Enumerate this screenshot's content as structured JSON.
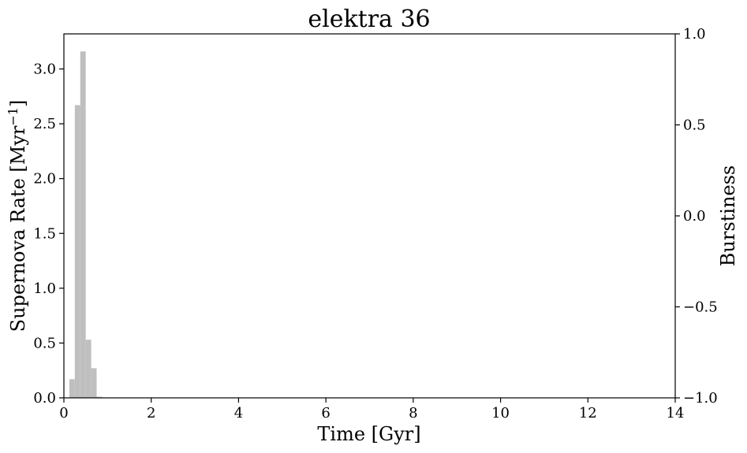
{
  "chart_data": {
    "type": "bar",
    "title": "elektra 36",
    "xlabel": "Time [Gyr]",
    "ylabel": "Supernova Rate [Myr",
    "ylabel_sup": "−1",
    "ylabel_close": "]",
    "y2label": "Burstiness",
    "xlim": [
      0,
      14
    ],
    "ylim": [
      0,
      3.32
    ],
    "y2lim": [
      -1.0,
      1.0
    ],
    "x_ticks": [
      0,
      2,
      4,
      6,
      8,
      10,
      12,
      14
    ],
    "x_tick_labels": [
      "0",
      "2",
      "4",
      "6",
      "8",
      "10",
      "12",
      "14"
    ],
    "y_ticks": [
      0.0,
      0.5,
      1.0,
      1.5,
      2.0,
      2.5,
      3.0
    ],
    "y_tick_labels": [
      "0.0",
      "0.5",
      "1.0",
      "1.5",
      "2.0",
      "2.5",
      "3.0"
    ],
    "y2_ticks": [
      -1.0,
      -0.5,
      0.0,
      0.5,
      1.0
    ],
    "y2_tick_labels": [
      "−1.0",
      "−0.5",
      "0.0",
      "0.5",
      "1.0"
    ],
    "bar_color": "#bfbfbf",
    "bin_edges": [
      0.125,
      0.25,
      0.375,
      0.5,
      0.625,
      0.75,
      0.875,
      1.0
    ],
    "values": [
      0.17,
      2.67,
      3.16,
      0.53,
      0.27,
      0.01,
      0.0
    ]
  }
}
